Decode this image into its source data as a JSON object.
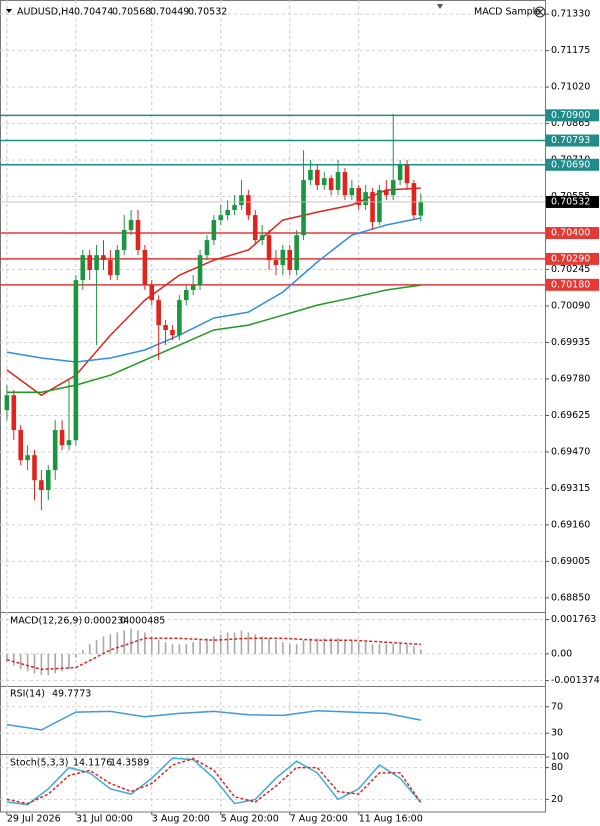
{
  "chart_data": [
    {
      "type": "candlestick",
      "symbol": "AUDUSD,H4",
      "expert": "MACD Sample",
      "xlim": [
        -1,
        78
      ],
      "xticks": [
        {
          "value": 0,
          "label": "29 Jul 2026"
        },
        {
          "value": 10,
          "label": "31 Jul 00:00"
        },
        {
          "value": 21,
          "label": "3 Aug 20:00"
        },
        {
          "value": 31,
          "label": "5 Aug 20:00"
        },
        {
          "value": 41,
          "label": "7 Aug 20:00"
        },
        {
          "value": 51,
          "label": "11 Aug 16:00"
        }
      ],
      "ylim": [
        0.6879,
        0.7139
      ],
      "yticks": [
        {
          "value": 0.7133,
          "label": "0.71330"
        },
        0.71175,
        {
          "value": 0.7102,
          "label": "0.71020"
        },
        0.70865,
        {
          "value": 0.7071,
          "label": "0.70710"
        },
        0.70555,
        0.70245,
        {
          "value": 0.7009,
          "label": "0.70090"
        },
        0.69935,
        {
          "value": 0.6978,
          "label": "0.69780"
        },
        0.69625,
        {
          "value": 0.6947,
          "label": "0.69470"
        },
        0.69315,
        {
          "value": 0.6916,
          "label": "0.69160"
        },
        0.69005,
        {
          "value": 0.6885,
          "label": "0.68850"
        }
      ],
      "grid": true,
      "up_color": "#1a9641",
      "down_color": "#e0231c",
      "open": [
        0.69648,
        0.69711,
        0.69563,
        0.69435,
        0.69456,
        0.6935,
        0.69308,
        0.69393,
        0.69563,
        0.69499,
        0.6952,
        0.702,
        0.70306,
        0.70243,
        0.70306,
        0.70285,
        0.70221,
        0.70328,
        0.70413,
        0.70455,
        0.70328,
        0.70179,
        0.70115,
        0.70009,
        0.69988,
        0.69966,
        0.70115,
        0.70158,
        0.70179,
        0.70306,
        0.7037,
        0.70455,
        0.70476,
        0.70498,
        0.70519,
        0.70561,
        0.70476,
        0.7037,
        0.70391,
        0.70285,
        0.70264,
        0.70328,
        0.70243,
        0.70391,
        0.70625,
        0.70668,
        0.70604,
        0.70633,
        0.70583,
        0.70659,
        0.70561,
        0.70591,
        0.70519,
        0.70574,
        0.70447,
        0.70583,
        0.70561,
        0.70625,
        0.70689,
        0.70612,
        0.70474
      ],
      "high": [
        0.69754,
        0.69733,
        0.69584,
        0.69499,
        0.69478,
        0.69393,
        0.69414,
        0.69605,
        0.69605,
        0.69775,
        0.70221,
        0.70328,
        0.70328,
        0.70349,
        0.7037,
        0.70328,
        0.70349,
        0.70476,
        0.70498,
        0.70498,
        0.70349,
        0.702,
        0.70136,
        0.7003,
        0.70009,
        0.70136,
        0.70179,
        0.70221,
        0.70328,
        0.70391,
        0.70476,
        0.70519,
        0.7054,
        0.70561,
        0.70625,
        0.70583,
        0.70498,
        0.70434,
        0.70413,
        0.70328,
        0.70349,
        0.70349,
        0.70413,
        0.70752,
        0.7071,
        0.70689,
        0.70659,
        0.70646,
        0.7071,
        0.70676,
        0.70625,
        0.70604,
        0.70604,
        0.70591,
        0.70604,
        0.70625,
        0.70906,
        0.7071,
        0.7071,
        0.70625,
        0.70568
      ],
      "low": [
        0.69605,
        0.6952,
        0.69414,
        0.69393,
        0.69265,
        0.69223,
        0.69265,
        0.6935,
        0.69478,
        0.69478,
        0.69499,
        0.70158,
        0.702,
        0.69924,
        0.70243,
        0.702,
        0.702,
        0.70306,
        0.70391,
        0.70306,
        0.70158,
        0.70094,
        0.6986,
        0.69924,
        0.69945,
        0.69945,
        0.70094,
        0.70136,
        0.70158,
        0.70285,
        0.70349,
        0.70434,
        0.70455,
        0.70476,
        0.70498,
        0.70455,
        0.70349,
        0.70349,
        0.70243,
        0.70221,
        0.70221,
        0.70221,
        0.70221,
        0.7037,
        0.70604,
        0.70583,
        0.70583,
        0.70561,
        0.70561,
        0.7054,
        0.7054,
        0.70498,
        0.70498,
        0.70413,
        0.70434,
        0.7054,
        0.7054,
        0.70604,
        0.70583,
        0.70455,
        0.70449
      ],
      "close": [
        0.69711,
        0.69563,
        0.69435,
        0.69456,
        0.6935,
        0.69308,
        0.69393,
        0.69563,
        0.69499,
        0.6952,
        0.702,
        0.70306,
        0.70243,
        0.70306,
        0.70285,
        0.70221,
        0.70328,
        0.70413,
        0.70455,
        0.70328,
        0.70179,
        0.70115,
        0.70009,
        0.69988,
        0.69966,
        0.70115,
        0.70158,
        0.70179,
        0.70306,
        0.7037,
        0.70455,
        0.70476,
        0.70498,
        0.70519,
        0.70561,
        0.70476,
        0.7037,
        0.70391,
        0.70285,
        0.70264,
        0.70328,
        0.70243,
        0.70391,
        0.70625,
        0.70668,
        0.70604,
        0.70633,
        0.70583,
        0.70659,
        0.70561,
        0.70591,
        0.70519,
        0.70574,
        0.70447,
        0.70583,
        0.70561,
        0.70625,
        0.70689,
        0.70612,
        0.70476,
        0.70532
      ],
      "overlays": [
        {
          "color": "#e0231c",
          "x": [
            0,
            5,
            10,
            15,
            20,
            25,
            30,
            35,
            40,
            45,
            50,
            55,
            60
          ],
          "values": [
            0.69818,
            0.69711,
            0.69796,
            0.69966,
            0.70115,
            0.70221,
            0.70285,
            0.70328,
            0.70455,
            0.70489,
            0.70519,
            0.70583,
            0.70591
          ]
        },
        {
          "color": "#2f8fe0",
          "x": [
            0,
            5,
            10,
            15,
            20,
            25,
            30,
            35,
            40,
            45,
            50,
            55,
            60
          ],
          "values": [
            0.69894,
            0.69869,
            0.69852,
            0.69869,
            0.69903,
            0.69966,
            0.70039,
            0.70064,
            0.70149,
            0.70277,
            0.70391,
            0.70434,
            0.70464
          ]
        },
        {
          "color": "#1f9a1f",
          "x": [
            0,
            5,
            10,
            15,
            20,
            25,
            30,
            35,
            40,
            45,
            50,
            55,
            60
          ],
          "values": [
            0.69724,
            0.69724,
            0.69754,
            0.69796,
            0.6986,
            0.69924,
            0.69988,
            0.70009,
            0.70051,
            0.70094,
            0.70125,
            0.70158,
            0.70179
          ]
        }
      ],
      "levels": [
        {
          "value": 0.709,
          "label": "0.70900",
          "color": "#1f8b8b"
        },
        {
          "value": 0.70793,
          "label": "0.70793",
          "color": "#1f8b8b"
        },
        {
          "value": 0.7069,
          "label": "0.70690",
          "color": "#1f8b8b"
        },
        {
          "value": 0.704,
          "label": "0.70400",
          "color": "#e53935"
        },
        {
          "value": 0.7029,
          "label": "0.70290",
          "color": "#e53935"
        },
        {
          "value": 0.7018,
          "label": "0.70180",
          "color": "#e53935"
        }
      ],
      "current_price": 0.70532
    },
    {
      "type": "macd",
      "title": "MACD(12,26,9)",
      "ylim": [
        -0.0016,
        0.0021
      ],
      "yticks": [
        0.001763,
        {
          "value": 0,
          "label": "0.00"
        },
        -0.001374
      ],
      "histogram": {
        "color": "#a8a8a8",
        "values": [
          -0.0004,
          -0.0006,
          -0.0008,
          -0.0009,
          -0.001,
          -0.0011,
          -0.0011,
          -0.001,
          -0.0009,
          -0.0008,
          -0.0002,
          0.0002,
          0.0005,
          0.0007,
          0.0009,
          0.001,
          0.0011,
          0.0012,
          0.0013,
          0.0012,
          0.0011,
          0.0009,
          0.0007,
          0.0006,
          0.0005,
          0.0005,
          0.0005,
          0.0006,
          0.0007,
          0.0008,
          0.0009,
          0.001,
          0.0011,
          0.0011,
          0.0012,
          0.0011,
          0.001,
          0.0009,
          0.0008,
          0.0007,
          0.0006,
          0.0005,
          0.0005,
          0.0007,
          0.0008,
          0.0008,
          0.0008,
          0.0008,
          0.0008,
          0.0007,
          0.0007,
          0.0006,
          0.0006,
          0.0005,
          0.0005,
          0.0005,
          0.0005,
          0.0005,
          0.0005,
          0.0004,
          0.000234
        ]
      },
      "signal": {
        "color": "#e0231c",
        "x": [
          0,
          5,
          10,
          15,
          20,
          25,
          30,
          35,
          40,
          45,
          50,
          55,
          60
        ],
        "values": [
          -0.0003,
          -0.0008,
          -0.0007,
          0.0002,
          0.0008,
          0.0008,
          0.0007,
          0.0008,
          0.0008,
          0.0007,
          0.0007,
          0.0006,
          0.000485
        ]
      }
    },
    {
      "type": "rsi",
      "title": "RSI(14)",
      "ylim": [
        0,
        100
      ],
      "yticks": [
        70,
        30
      ],
      "color": "#3d9ae0",
      "x": [
        0,
        5,
        10,
        15,
        20,
        25,
        30,
        35,
        40,
        45,
        50,
        55,
        60
      ],
      "values": [
        43,
        35,
        62,
        63,
        55,
        60,
        63,
        58,
        57,
        64,
        62,
        60,
        49.7773
      ]
    },
    {
      "type": "stochastic",
      "title": "Stoch(5,3,3)",
      "ylim": [
        0,
        100
      ],
      "yticks": [
        100,
        80,
        20
      ],
      "main": {
        "color": "#3fa9dc",
        "x": [
          0,
          3,
          6,
          9,
          12,
          15,
          18,
          21,
          24,
          27,
          30,
          33,
          36,
          39,
          42,
          45,
          48,
          51,
          54,
          57,
          60
        ],
        "values": [
          15,
          10,
          40,
          80,
          70,
          40,
          30,
          60,
          98,
          95,
          60,
          12,
          20,
          60,
          92,
          70,
          20,
          40,
          85,
          60,
          14.1176
        ]
      },
      "signal": {
        "color": "#e0231c",
        "x": [
          0,
          3,
          6,
          9,
          12,
          15,
          18,
          21,
          24,
          27,
          30,
          33,
          36,
          39,
          42,
          45,
          48,
          51,
          54,
          57,
          60
        ],
        "values": [
          20,
          12,
          30,
          65,
          75,
          50,
          35,
          50,
          85,
          97,
          75,
          25,
          15,
          45,
          80,
          80,
          35,
          30,
          70,
          70,
          14.3589
        ]
      }
    }
  ]
}
